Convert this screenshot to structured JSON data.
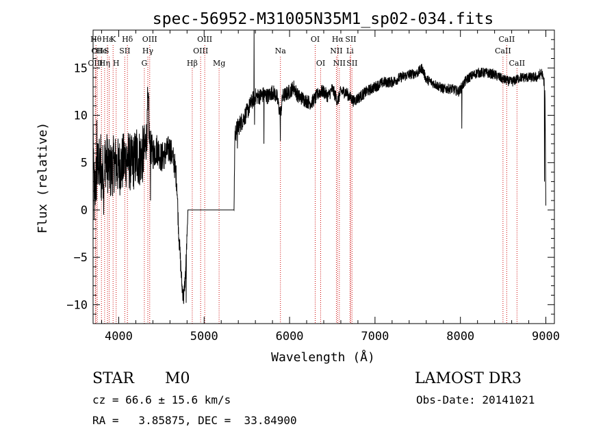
{
  "chart_data": {
    "type": "line",
    "title": "spec-56952-M31005N35M1_sp02-034.fits",
    "xlabel": "Wavelength (Å)",
    "ylabel": "Flux (relative)",
    "xlim": [
      3700,
      9100
    ],
    "ylim": [
      -12,
      19
    ],
    "xticks": [
      4000,
      5000,
      6000,
      7000,
      8000,
      9000
    ],
    "yticks": [
      -10,
      -5,
      0,
      5,
      10,
      15
    ],
    "grid": false,
    "series": [
      {
        "name": "spectrum",
        "anchors": [
          [
            3700,
            4.0
          ],
          [
            3720,
            2.0
          ],
          [
            3760,
            5.0
          ],
          [
            3800,
            3.5
          ],
          [
            3850,
            5.5
          ],
          [
            3900,
            4.0
          ],
          [
            3950,
            5.0
          ],
          [
            4000,
            4.5
          ],
          [
            4050,
            5.0
          ],
          [
            4100,
            5.5
          ],
          [
            4150,
            4.8
          ],
          [
            4200,
            5.5
          ],
          [
            4250,
            5.5
          ],
          [
            4300,
            6.0
          ],
          [
            4330,
            8.0
          ],
          [
            4345,
            11.5
          ],
          [
            4360,
            7.0
          ],
          [
            4400,
            6.0
          ],
          [
            4450,
            6.5
          ],
          [
            4500,
            5.5
          ],
          [
            4550,
            6.0
          ],
          [
            4600,
            6.5
          ],
          [
            4650,
            5.0
          ],
          [
            4680,
            3.0
          ],
          [
            4700,
            -2.0
          ],
          [
            4720,
            -5.0
          ],
          [
            4740,
            -8.0
          ],
          [
            4760,
            -9.3
          ],
          [
            4780,
            -7.0
          ],
          [
            4800,
            -3.0
          ],
          [
            4810,
            0.0
          ],
          [
            5350,
            0.0
          ],
          [
            5360,
            8.0
          ],
          [
            5400,
            8.8
          ],
          [
            5450,
            9.5
          ],
          [
            5500,
            10.3
          ],
          [
            5560,
            11.5
          ],
          [
            5600,
            12.0
          ],
          [
            5650,
            12.0
          ],
          [
            5700,
            12.2
          ],
          [
            5750,
            12.0
          ],
          [
            5800,
            12.5
          ],
          [
            5850,
            12.0
          ],
          [
            5893,
            10.0
          ],
          [
            5920,
            12.0
          ],
          [
            6000,
            12.5
          ],
          [
            6050,
            13.0
          ],
          [
            6100,
            12.0
          ],
          [
            6150,
            11.8
          ],
          [
            6200,
            11.5
          ],
          [
            6250,
            11.3
          ],
          [
            6300,
            11.8
          ],
          [
            6350,
            12.5
          ],
          [
            6400,
            12.5
          ],
          [
            6450,
            12.0
          ],
          [
            6500,
            12.8
          ],
          [
            6563,
            11.5
          ],
          [
            6600,
            12.5
          ],
          [
            6650,
            12.5
          ],
          [
            6700,
            12.0
          ],
          [
            6750,
            11.5
          ],
          [
            6800,
            11.8
          ],
          [
            6900,
            12.5
          ],
          [
            7000,
            13.0
          ],
          [
            7100,
            13.5
          ],
          [
            7200,
            13.5
          ],
          [
            7300,
            14.0
          ],
          [
            7400,
            14.3
          ],
          [
            7500,
            14.5
          ],
          [
            7550,
            15.0
          ],
          [
            7600,
            13.8
          ],
          [
            7700,
            13.3
          ],
          [
            7800,
            12.8
          ],
          [
            7900,
            12.8
          ],
          [
            7980,
            12.5
          ],
          [
            8050,
            13.5
          ],
          [
            8100,
            14.0
          ],
          [
            8200,
            14.5
          ],
          [
            8300,
            14.5
          ],
          [
            8400,
            14.3
          ],
          [
            8500,
            13.8
          ],
          [
            8600,
            13.5
          ],
          [
            8700,
            14.0
          ],
          [
            8800,
            14.0
          ],
          [
            8900,
            14.0
          ],
          [
            8950,
            14.5
          ],
          [
            8980,
            13.5
          ],
          [
            8990,
            12.0
          ],
          [
            9000,
            0.0
          ]
        ],
        "noise_scale": [
          [
            3700,
            3.5
          ],
          [
            4300,
            3.5
          ],
          [
            4330,
            2.0
          ],
          [
            4400,
            2.0
          ],
          [
            4660,
            1.6
          ],
          [
            4700,
            1.2
          ],
          [
            4800,
            1.0
          ],
          [
            4809,
            0
          ],
          [
            5349,
            0
          ],
          [
            5360,
            1.2
          ],
          [
            5600,
            1.0
          ],
          [
            6000,
            0.9
          ],
          [
            6800,
            0.7
          ],
          [
            7500,
            0.6
          ],
          [
            9000,
            0.6
          ]
        ],
        "spikes": [
          [
            3703,
            9.0
          ],
          [
            3712,
            -1.0
          ],
          [
            3745,
            9.5
          ],
          [
            3790,
            8.0
          ],
          [
            3825,
            -0.5
          ],
          [
            4210,
            8.5
          ],
          [
            4338,
            13.0
          ],
          [
            4352,
            12.0
          ],
          [
            4372,
            1.0
          ],
          [
            4790,
            -9.8
          ],
          [
            5390,
            6.5
          ],
          [
            5585,
            19.0
          ],
          [
            5590,
            9.0
          ],
          [
            5700,
            7.0
          ],
          [
            5893,
            7.3
          ],
          [
            8017,
            8.6
          ],
          [
            8985,
            3.0
          ]
        ]
      }
    ],
    "lines": [
      {
        "x": 3734,
        "label": "Hθ",
        "row": 1,
        "dx": 0
      },
      {
        "x": 3750,
        "label": "OII",
        "row": 2,
        "dx": 0
      },
      {
        "x": 3727,
        "label": "OIII",
        "row": 3,
        "dx": 0
      },
      {
        "x": 3798,
        "label": "He",
        "row": 2,
        "dx": 0
      },
      {
        "x": 3835,
        "label": "Hη",
        "row": 3,
        "dx": 0
      },
      {
        "x": 3869,
        "label": "Hε",
        "row": 1,
        "dx": 0
      },
      {
        "x": 3889,
        "label": "S",
        "row": 2,
        "dx": -4
      },
      {
        "x": 3934,
        "label": "K",
        "row": 1,
        "dx": 0
      },
      {
        "x": 3970,
        "label": "H",
        "row": 3,
        "dx": 0
      },
      {
        "x": 4071,
        "label": "SII",
        "row": 2,
        "dx": 0
      },
      {
        "x": 4102,
        "label": "Hδ",
        "row": 1,
        "dx": 0
      },
      {
        "x": 4300,
        "label": "G",
        "row": 3,
        "dx": 0
      },
      {
        "x": 4341,
        "label": "Hγ",
        "row": 2,
        "dx": 0
      },
      {
        "x": 4363,
        "label": "OIII",
        "row": 1,
        "dx": 0
      },
      {
        "x": 4861,
        "label": "Hβ",
        "row": 3,
        "dx": 0
      },
      {
        "x": 4959,
        "label": "OIII",
        "row": 2,
        "dx": 0
      },
      {
        "x": 5007,
        "label": "OIII",
        "row": 1,
        "dx": 0
      },
      {
        "x": 5175,
        "label": "Mg",
        "row": 3,
        "dx": 0
      },
      {
        "x": 5893,
        "label": "Na",
        "row": 2,
        "dx": 0
      },
      {
        "x": 6300,
        "label": "OI",
        "row": 1,
        "dx": 0
      },
      {
        "x": 6364,
        "label": "OI",
        "row": 3,
        "dx": 0
      },
      {
        "x": 6548,
        "label": "NII",
        "row": 2,
        "dx": 0
      },
      {
        "x": 6563,
        "label": "Hα",
        "row": 1,
        "dx": 0
      },
      {
        "x": 6583,
        "label": "NII",
        "row": 3,
        "dx": 0
      },
      {
        "x": 6707,
        "label": "Li",
        "row": 2,
        "dx": 0
      },
      {
        "x": 6716,
        "label": "SII",
        "row": 1,
        "dx": 0
      },
      {
        "x": 6731,
        "label": "SII",
        "row": 3,
        "dx": 0
      },
      {
        "x": 8498,
        "label": "CaII",
        "row": 2,
        "dx": 0
      },
      {
        "x": 8542,
        "label": "CaII",
        "row": 1,
        "dx": 0
      },
      {
        "x": 8662,
        "label": "CaII",
        "row": 3,
        "dx": 0
      }
    ]
  },
  "info": {
    "class": "STAR",
    "subclass": "M0",
    "survey": "LAMOST DR3",
    "cz": "cz = 66.6 ± 15.6 km/s",
    "obs_date": "Obs-Date: 20141021",
    "radec": "RA =   3.85875, DEC =  33.84900"
  },
  "colors": {
    "line": "#000000",
    "marker": "#cc0000",
    "axes": "#000000"
  }
}
